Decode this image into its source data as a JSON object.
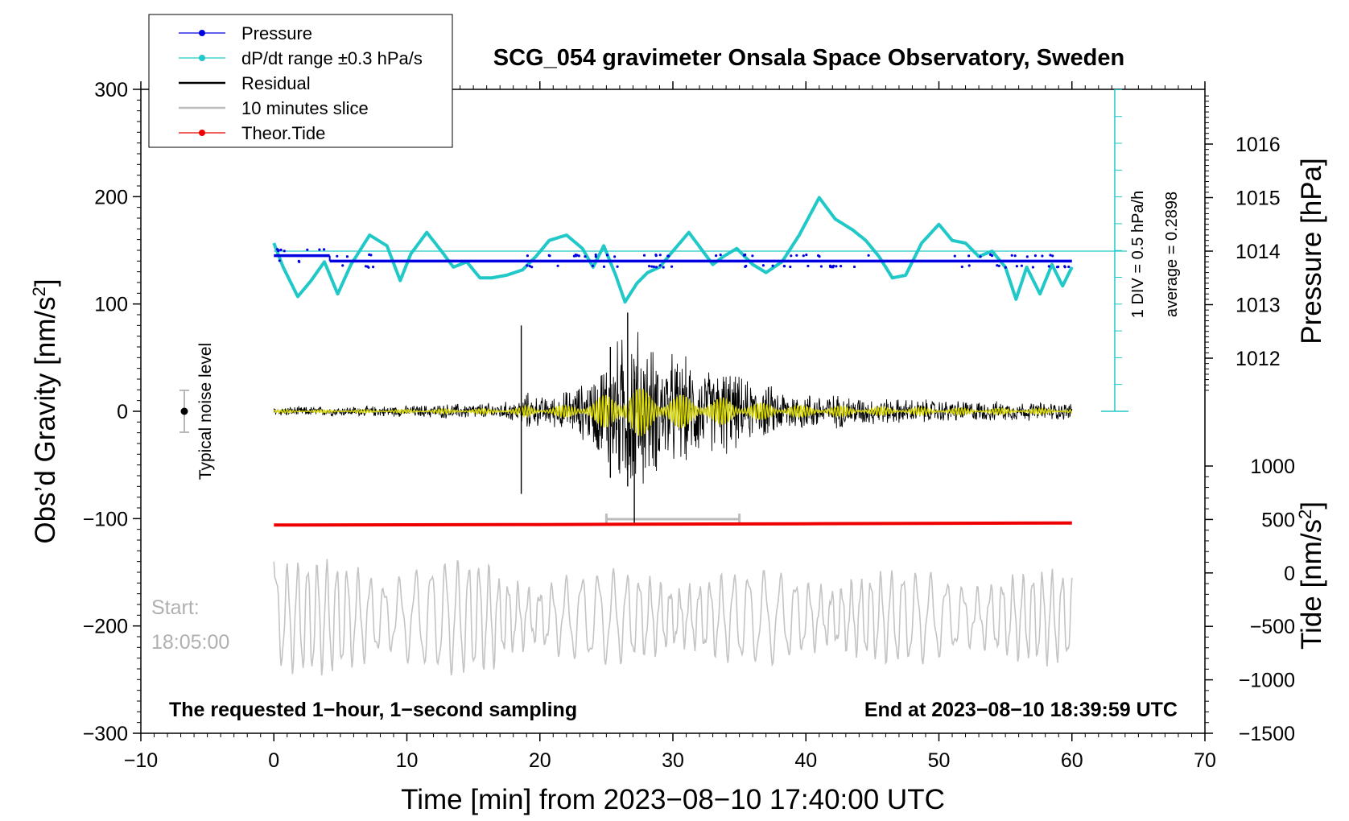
{
  "chart_data": {
    "type": "line",
    "title": "SCG_054 gravimeter Onsala Space Observatory, Sweden",
    "xlabel": "Time [min] from 2023−08−10 17:40:00 UTC",
    "ylabel": "Obs’d Gravity [nm/s",
    "ylabel_sup": "2",
    "ylabel_close": "]",
    "pressure_label": "Pressure [hPa]",
    "tide_label": "Tide [nm/s",
    "tide_sup": "2",
    "tide_close": "]",
    "xlim": [
      -10,
      70
    ],
    "ylim": [
      -300,
      300
    ],
    "x_ticks": [
      -10,
      0,
      10,
      20,
      30,
      40,
      50,
      60,
      70
    ],
    "x_tick_labels": [
      "−10",
      "0",
      "10",
      "20",
      "30",
      "40",
      "50",
      "60",
      "70"
    ],
    "y_ticks": [
      -300,
      -200,
      -100,
      0,
      100,
      200,
      300
    ],
    "y_tick_labels": [
      "−300",
      "−200",
      "−100",
      "0",
      "100",
      "200",
      "300"
    ],
    "pressure_ticks": [
      1012,
      1013,
      1014,
      1015,
      1016
    ],
    "pressure_tick_labels": [
      "1012",
      "1013",
      "1014",
      "1015",
      "1016"
    ],
    "tide_ticks": [
      -1500,
      -1000,
      -500,
      0,
      500,
      1000
    ],
    "tide_tick_labels": [
      "−1500",
      "−1000",
      "−500",
      "0",
      "500",
      "1000"
    ],
    "legend": [
      {
        "label": "Pressure",
        "color": "#0000e0",
        "style": "line-dot"
      },
      {
        "label": "dP/dt range ±0.3 hPa/s",
        "color": "#20c8c8",
        "style": "line-dot"
      },
      {
        "label": "Residual",
        "color": "#000000",
        "style": "line"
      },
      {
        "label": "10 minutes slice",
        "color": "#bdbdbd",
        "style": "line"
      },
      {
        "label": "Theor.Tide",
        "color": "#ee0000",
        "style": "line-dot"
      }
    ],
    "noise_label": "Typical noise level",
    "scale_label_1": "1 DIV = 0.5 hPa/h",
    "scale_label_2": "average = 0.2898",
    "start_label_1": "Start:",
    "start_label_2": "18:05:00",
    "footer_left": "The requested 1−hour, 1−second sampling",
    "footer_right": "End at 2023−08−10 18:39:59 UTC",
    "slice_range": [
      25,
      35
    ],
    "pressure_series": {
      "name": "Pressure",
      "x": [
        0,
        5,
        10,
        14,
        18,
        22,
        26,
        29,
        31,
        35,
        40,
        44,
        48,
        52,
        56,
        60
      ],
      "values": [
        1014.0,
        1014.0,
        1013.98,
        1013.95,
        1013.92,
        1013.9,
        1013.9,
        1013.9,
        1013.9,
        1013.9,
        1013.9,
        1013.9,
        1013.9,
        1013.9,
        1013.9,
        1013.9
      ]
    },
    "dpdt_series": {
      "name": "dP/dt range ±0.3 hPa/s",
      "x": [
        0,
        0.7,
        1.8,
        2.8,
        3.8,
        4.8,
        5.8,
        7.2,
        8.5,
        9.5,
        10.3,
        11.5,
        12.6,
        13.5,
        14.5,
        15.5,
        16.4,
        17.5,
        18.7,
        19.7,
        20.7,
        22.0,
        23.2,
        24.0,
        24.8,
        25.7,
        26.4,
        27.3,
        28.1,
        29.0,
        30.0,
        31.2,
        32.1,
        33.0,
        33.8,
        34.8,
        36.0,
        37.0,
        38.2,
        39.5,
        41.0,
        42.2,
        43.5,
        44.5,
        45.5,
        46.5,
        47.5,
        48.7,
        50.0,
        51.0,
        52.0,
        53.0,
        54.0,
        55.0,
        55.8,
        56.6,
        57.6,
        58.5,
        59.3,
        60.0
      ],
      "values": [
        1014.15,
        1013.7,
        1013.15,
        1013.45,
        1013.8,
        1013.2,
        1013.75,
        1014.3,
        1014.1,
        1013.45,
        1013.95,
        1014.35,
        1014.0,
        1013.7,
        1013.8,
        1013.5,
        1013.5,
        1013.55,
        1013.65,
        1013.9,
        1014.2,
        1014.3,
        1014.05,
        1013.7,
        1014.1,
        1013.55,
        1013.05,
        1013.4,
        1013.6,
        1013.7,
        1014.0,
        1014.35,
        1014.05,
        1013.75,
        1013.9,
        1014.05,
        1013.75,
        1013.6,
        1013.8,
        1014.3,
        1015.0,
        1014.6,
        1014.4,
        1014.2,
        1013.9,
        1013.5,
        1013.55,
        1014.15,
        1014.5,
        1014.2,
        1014.15,
        1013.9,
        1014.0,
        1013.7,
        1013.1,
        1013.7,
        1013.2,
        1013.75,
        1013.35,
        1013.7
      ]
    },
    "dpdt_axis": {
      "center": 1014.0,
      "min": 1011.0,
      "max": 1017.0
    },
    "residual_envelope": {
      "name": "Residual",
      "x": [
        0,
        5,
        10,
        13.5,
        17,
        18.5,
        19,
        20,
        21,
        22,
        23,
        24,
        25,
        26,
        27,
        28,
        29,
        30,
        31,
        32,
        33,
        34,
        35,
        36,
        37,
        38,
        39,
        40,
        42,
        45,
        50,
        55,
        60
      ],
      "amplitude": [
        5,
        5,
        6,
        8,
        9,
        12,
        20,
        15,
        16,
        22,
        28,
        38,
        60,
        78,
        95,
        75,
        62,
        60,
        55,
        48,
        42,
        48,
        36,
        30,
        28,
        24,
        22,
        20,
        18,
        14,
        12,
        10,
        9
      ]
    },
    "residual_spikes": [
      {
        "x": 18.6,
        "values": [
          80,
          -77
        ]
      },
      {
        "x": 26.6,
        "values": [
          92,
          -70
        ]
      },
      {
        "x": 27.1,
        "values": [
          30,
          -105
        ]
      },
      {
        "x": 25.3,
        "values": [
          60,
          -62
        ]
      }
    ],
    "tide_series": {
      "name": "Theor.Tide",
      "x": [
        0,
        20,
        40,
        60
      ],
      "values": [
        -106,
        -105.5,
        -104.8,
        -104
      ]
    },
    "slice_series": {
      "name": "10 minutes slice",
      "ylim": [
        -300,
        -90
      ],
      "start_value": -140
    }
  }
}
